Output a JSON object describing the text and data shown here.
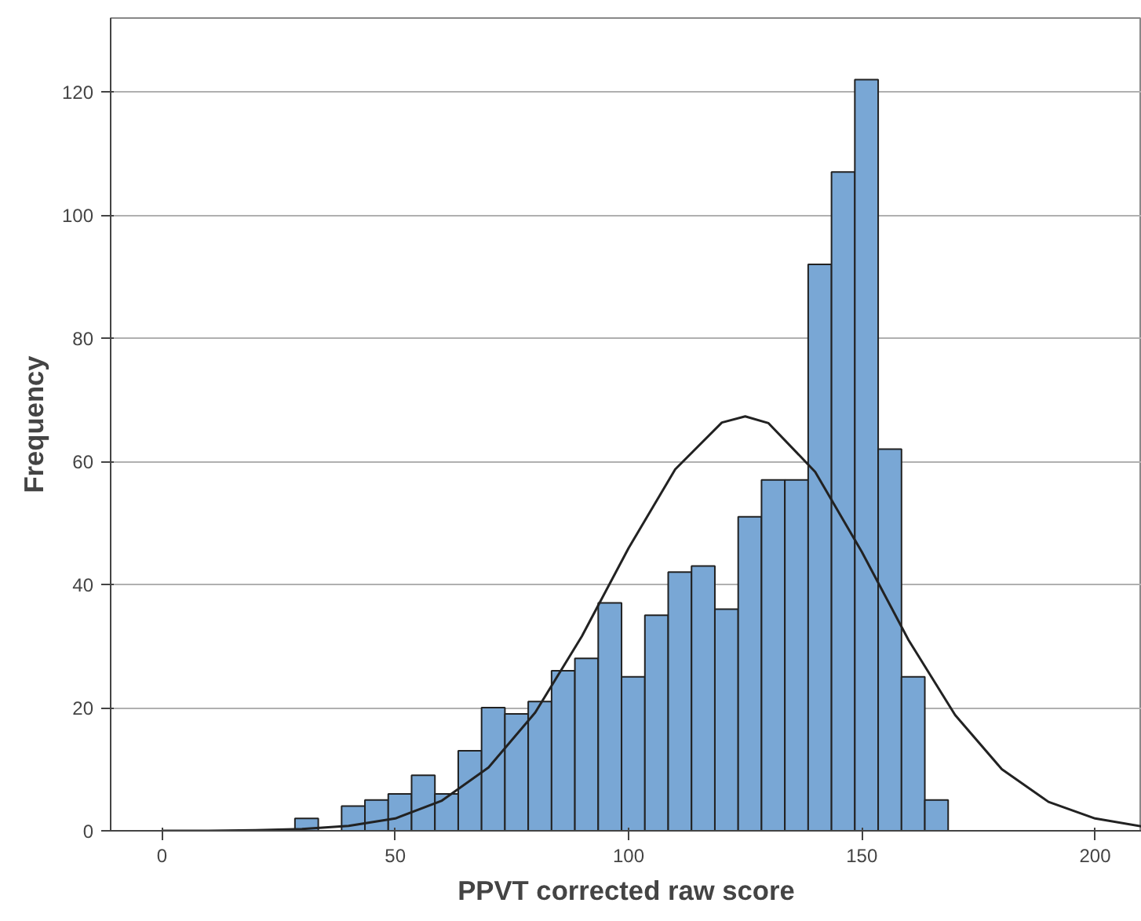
{
  "chart_data": {
    "type": "histogram",
    "xlabel": "PPVT corrected raw score",
    "ylabel": "Frequency",
    "bins": [
      28.5,
      33.5,
      38.5,
      43.5,
      48.5,
      53.5,
      58.5,
      63.5,
      68.5,
      73.5,
      78.5,
      83.5,
      88.5,
      93.5,
      98.5,
      103.5,
      108.5,
      113.5,
      118.5,
      123.5,
      128.5,
      133.5,
      138.5,
      143.5,
      148.5,
      153.5,
      158.5,
      163.5,
      168.5
    ],
    "values": [
      2,
      0,
      4,
      5,
      6,
      9,
      6,
      13,
      20,
      19,
      21,
      26,
      28,
      37,
      25,
      35,
      42,
      43,
      36,
      51,
      57,
      57,
      92,
      107,
      122,
      62,
      25,
      5
    ],
    "color": "#79a7d5",
    "series": [
      {
        "type": "line",
        "color": "#222222",
        "x": [
          0,
          10,
          20,
          30,
          40,
          50,
          60,
          70,
          80,
          90,
          100,
          110,
          120,
          125,
          130,
          140,
          150,
          160,
          170,
          180,
          190,
          200,
          210
        ],
        "values": [
          0,
          0,
          0.1,
          0.3,
          0.8,
          2,
          4.9,
          10.3,
          19.2,
          31.6,
          45.9,
          58.7,
          66.3,
          67.3,
          66.2,
          58.3,
          45.3,
          31,
          18.8,
          10,
          4.7,
          2,
          0.7
        ]
      }
    ],
    "xlim": [
      -11,
      210
    ],
    "ylim": [
      0,
      132
    ],
    "xticks": [
      0,
      50,
      100,
      150,
      200
    ],
    "yticks": [
      0,
      20,
      40,
      60,
      80,
      100,
      120
    ],
    "grid": "y"
  }
}
